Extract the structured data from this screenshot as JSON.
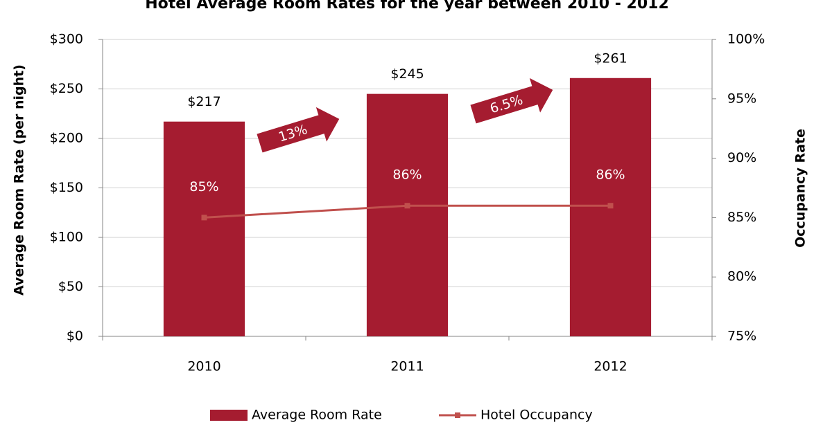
{
  "chart_data": {
    "type": "bar_line",
    "title": "Hotel Average Room Rates for the year between 2010 - 2012",
    "y_label": "Average Room Rate (per night)",
    "y2_label": "Occupancy Rate",
    "categories": [
      "2010",
      "2011",
      "2012"
    ],
    "series": [
      {
        "name": "Average Room Rate",
        "type": "bar",
        "color": "#a51c30",
        "values": [
          217,
          245,
          261
        ],
        "value_labels": [
          "$217",
          "$245",
          "$261"
        ]
      },
      {
        "name": "Hotel Occupancy",
        "type": "line",
        "axis": "y2",
        "color": "#c0504d",
        "values": [
          85,
          86,
          86
        ],
        "value_labels": [
          "85%",
          "86%",
          "86%"
        ]
      }
    ],
    "annotations": [
      "13%",
      "6.5%"
    ],
    "ylim": [
      0,
      300
    ],
    "yticks": [
      {
        "value": 0,
        "label": "$0"
      },
      {
        "value": 50,
        "label": "$50"
      },
      {
        "value": 100,
        "label": "$100"
      },
      {
        "value": 150,
        "label": "$150"
      },
      {
        "value": 200,
        "label": "$200"
      },
      {
        "value": 250,
        "label": "$250"
      },
      {
        "value": 300,
        "label": "$300"
      }
    ],
    "y2lim": [
      75,
      100
    ],
    "y2ticks": [
      {
        "value": 75,
        "label": "75%"
      },
      {
        "value": 80,
        "label": "80%"
      },
      {
        "value": 85,
        "label": "85%"
      },
      {
        "value": 90,
        "label": "90%"
      },
      {
        "value": 95,
        "label": "95%"
      },
      {
        "value": 100,
        "label": "100%"
      }
    ],
    "grid": true,
    "legend": "bottom"
  }
}
